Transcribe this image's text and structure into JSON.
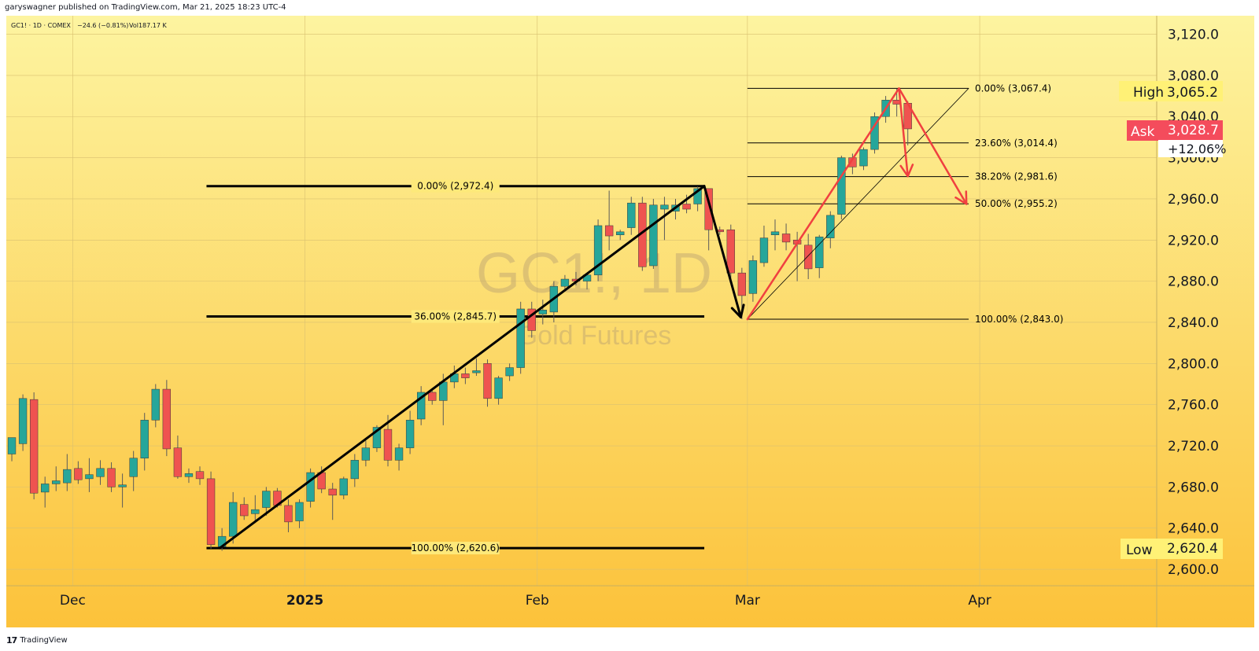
{
  "header": {
    "publish_line": "garyswagner published on TradingView.com, Mar 21, 2025 18:23 UTC-4"
  },
  "legend": {
    "symbol_line": "GC1! · 1D · COMEX",
    "change_text": "−24.6 (−0.81%)",
    "volume_text": "Vol187.17 K"
  },
  "watermark": {
    "symbol": "GC1!, 1D",
    "description": "Gold Futures"
  },
  "footer": {
    "brand": "TradingView",
    "logo_glyph": "17"
  },
  "badges": {
    "high_label": "High",
    "high_value": "3,065.2",
    "ask_label": "Ask",
    "ask_value": "3,028.7",
    "change_pct": "+12.06%",
    "low_label": "Low",
    "low_value": "2,620.4"
  },
  "colors": {
    "background_top": "#fdf4a0",
    "background_bottom": "#fcc23a",
    "up_candle": "#26a69a",
    "down_candle": "#ef5350",
    "wick": "#5a5a5a",
    "fib_black": "#000000",
    "fib_red": "#f04040",
    "high_badge": "#fff176",
    "ask_badge": "#f44c5c",
    "low_badge": "#fff176"
  },
  "chart_data": {
    "type": "candlestick",
    "y_axis": {
      "min": 2584,
      "max": 3138,
      "ticks": [
        "2,600.0",
        "2,640.0",
        "2,680.0",
        "2,720.0",
        "2,760.0",
        "2,800.0",
        "2,840.0",
        "2,880.0",
        "2,920.0",
        "2,960.0",
        "3,000.0",
        "3,040.0",
        "3,080.0",
        "3,120.0"
      ],
      "tick_values": [
        2600,
        2640,
        2680,
        2720,
        2760,
        2800,
        2840,
        2880,
        2920,
        2960,
        3000,
        3040,
        3080,
        3120
      ]
    },
    "x_axis": {
      "labels": [
        {
          "text": "Dec",
          "bar": 5.5,
          "bold": false
        },
        {
          "text": "2025",
          "bar": 26.5,
          "bold": true
        },
        {
          "text": "Feb",
          "bar": 47.5,
          "bold": false
        },
        {
          "text": "Mar",
          "bar": 66.5,
          "bold": false
        },
        {
          "text": "Apr",
          "bar": 87.5,
          "bold": false
        }
      ],
      "visible_bar_range": [
        -0.5,
        103.5
      ]
    },
    "grid": true,
    "candles": [
      {
        "o": 2712,
        "h": 2726,
        "l": 2705,
        "c": 2728
      },
      {
        "o": 2722,
        "h": 2770,
        "l": 2715,
        "c": 2766
      },
      {
        "o": 2765,
        "h": 2772,
        "l": 2668,
        "c": 2674
      },
      {
        "o": 2675,
        "h": 2690,
        "l": 2660,
        "c": 2683
      },
      {
        "o": 2683,
        "h": 2700,
        "l": 2676,
        "c": 2686
      },
      {
        "o": 2684,
        "h": 2712,
        "l": 2676,
        "c": 2697
      },
      {
        "o": 2698,
        "h": 2705,
        "l": 2683,
        "c": 2687
      },
      {
        "o": 2688,
        "h": 2708,
        "l": 2675,
        "c": 2692
      },
      {
        "o": 2690,
        "h": 2706,
        "l": 2682,
        "c": 2698
      },
      {
        "o": 2698,
        "h": 2704,
        "l": 2675,
        "c": 2680
      },
      {
        "o": 2680,
        "h": 2693,
        "l": 2660,
        "c": 2682
      },
      {
        "o": 2690,
        "h": 2715,
        "l": 2676,
        "c": 2708
      },
      {
        "o": 2708,
        "h": 2752,
        "l": 2696,
        "c": 2745
      },
      {
        "o": 2745,
        "h": 2780,
        "l": 2738,
        "c": 2775
      },
      {
        "o": 2775,
        "h": 2784,
        "l": 2710,
        "c": 2717
      },
      {
        "o": 2718,
        "h": 2730,
        "l": 2688,
        "c": 2690
      },
      {
        "o": 2690,
        "h": 2698,
        "l": 2684,
        "c": 2693
      },
      {
        "o": 2695,
        "h": 2700,
        "l": 2682,
        "c": 2688
      },
      {
        "o": 2688,
        "h": 2695,
        "l": 2620,
        "c": 2624
      },
      {
        "o": 2622,
        "h": 2640,
        "l": 2618,
        "c": 2632
      },
      {
        "o": 2632,
        "h": 2675,
        "l": 2625,
        "c": 2665
      },
      {
        "o": 2663,
        "h": 2670,
        "l": 2648,
        "c": 2652
      },
      {
        "o": 2654,
        "h": 2672,
        "l": 2645,
        "c": 2658
      },
      {
        "o": 2660,
        "h": 2680,
        "l": 2652,
        "c": 2676
      },
      {
        "o": 2676,
        "h": 2679,
        "l": 2660,
        "c": 2662
      },
      {
        "o": 2662,
        "h": 2668,
        "l": 2636,
        "c": 2646
      },
      {
        "o": 2647,
        "h": 2668,
        "l": 2640,
        "c": 2665
      },
      {
        "o": 2666,
        "h": 2698,
        "l": 2660,
        "c": 2694
      },
      {
        "o": 2694,
        "h": 2700,
        "l": 2674,
        "c": 2678
      },
      {
        "o": 2678,
        "h": 2684,
        "l": 2648,
        "c": 2672
      },
      {
        "o": 2672,
        "h": 2690,
        "l": 2668,
        "c": 2688
      },
      {
        "o": 2688,
        "h": 2712,
        "l": 2680,
        "c": 2706
      },
      {
        "o": 2706,
        "h": 2725,
        "l": 2700,
        "c": 2718
      },
      {
        "o": 2718,
        "h": 2740,
        "l": 2714,
        "c": 2738
      },
      {
        "o": 2736,
        "h": 2750,
        "l": 2700,
        "c": 2706
      },
      {
        "o": 2706,
        "h": 2722,
        "l": 2696,
        "c": 2718
      },
      {
        "o": 2718,
        "h": 2754,
        "l": 2712,
        "c": 2745
      },
      {
        "o": 2746,
        "h": 2778,
        "l": 2740,
        "c": 2772
      },
      {
        "o": 2772,
        "h": 2776,
        "l": 2760,
        "c": 2764
      },
      {
        "o": 2764,
        "h": 2790,
        "l": 2740,
        "c": 2782
      },
      {
        "o": 2782,
        "h": 2798,
        "l": 2776,
        "c": 2790
      },
      {
        "o": 2790,
        "h": 2796,
        "l": 2780,
        "c": 2786
      },
      {
        "o": 2791,
        "h": 2805,
        "l": 2788,
        "c": 2793
      },
      {
        "o": 2800,
        "h": 2804,
        "l": 2758,
        "c": 2766
      },
      {
        "o": 2766,
        "h": 2788,
        "l": 2760,
        "c": 2786
      },
      {
        "o": 2788,
        "h": 2800,
        "l": 2783,
        "c": 2796
      },
      {
        "o": 2796,
        "h": 2860,
        "l": 2790,
        "c": 2853
      },
      {
        "o": 2853,
        "h": 2860,
        "l": 2825,
        "c": 2832
      },
      {
        "o": 2848,
        "h": 2862,
        "l": 2838,
        "c": 2852
      },
      {
        "o": 2850,
        "h": 2880,
        "l": 2840,
        "c": 2875
      },
      {
        "o": 2875,
        "h": 2886,
        "l": 2870,
        "c": 2882
      },
      {
        "o": 2882,
        "h": 2889,
        "l": 2876,
        "c": 2880
      },
      {
        "o": 2880,
        "h": 2887,
        "l": 2872,
        "c": 2886
      },
      {
        "o": 2886,
        "h": 2940,
        "l": 2880,
        "c": 2934
      },
      {
        "o": 2934,
        "h": 2968,
        "l": 2910,
        "c": 2924
      },
      {
        "o": 2925,
        "h": 2930,
        "l": 2920,
        "c": 2928
      },
      {
        "o": 2932,
        "h": 2962,
        "l": 2925,
        "c": 2956
      },
      {
        "o": 2956,
        "h": 2962,
        "l": 2890,
        "c": 2894
      },
      {
        "o": 2895,
        "h": 2960,
        "l": 2892,
        "c": 2954
      },
      {
        "o": 2950,
        "h": 2962,
        "l": 2920,
        "c": 2954
      },
      {
        "o": 2948,
        "h": 2960,
        "l": 2940,
        "c": 2954
      },
      {
        "o": 2955,
        "h": 2964,
        "l": 2946,
        "c": 2950
      },
      {
        "o": 2955,
        "h": 2972,
        "l": 2948,
        "c": 2970
      },
      {
        "o": 2970,
        "h": 2970,
        "l": 2910,
        "c": 2930
      },
      {
        "o": 2930,
        "h": 2933,
        "l": 2925,
        "c": 2928
      },
      {
        "o": 2930,
        "h": 2935,
        "l": 2878,
        "c": 2888
      },
      {
        "o": 2888,
        "h": 2893,
        "l": 2843,
        "c": 2866
      },
      {
        "o": 2868,
        "h": 2905,
        "l": 2860,
        "c": 2900
      },
      {
        "o": 2898,
        "h": 2934,
        "l": 2894,
        "c": 2922
      },
      {
        "o": 2925,
        "h": 2940,
        "l": 2910,
        "c": 2928
      },
      {
        "o": 2926,
        "h": 2936,
        "l": 2910,
        "c": 2918
      },
      {
        "o": 2920,
        "h": 2928,
        "l": 2880,
        "c": 2916
      },
      {
        "o": 2915,
        "h": 2926,
        "l": 2882,
        "c": 2892
      },
      {
        "o": 2893,
        "h": 2925,
        "l": 2883,
        "c": 2923
      },
      {
        "o": 2922,
        "h": 2948,
        "l": 2912,
        "c": 2944
      },
      {
        "o": 2945,
        "h": 3002,
        "l": 2940,
        "c": 3000
      },
      {
        "o": 3000,
        "h": 3004,
        "l": 2984,
        "c": 2991
      },
      {
        "o": 2992,
        "h": 3010,
        "l": 2988,
        "c": 3008
      },
      {
        "o": 3008,
        "h": 3044,
        "l": 3004,
        "c": 3040
      },
      {
        "o": 3040,
        "h": 3060,
        "l": 3034,
        "c": 3056
      },
      {
        "o": 3056,
        "h": 3067,
        "l": 3040,
        "c": 3052
      },
      {
        "o": 3053,
        "h": 3055,
        "l": 3012,
        "c": 3028
      }
    ],
    "fibonacci": [
      {
        "color": "black",
        "levels": [
          {
            "label": "0.00% (2,972.4)",
            "value": 2972.4
          },
          {
            "label": "36.00% (2,845.7)",
            "value": 2845.7
          },
          {
            "label": "100.00% (2,620.6)",
            "value": 2620.6
          }
        ]
      },
      {
        "color": "thin-black",
        "levels": [
          {
            "label": "0.00% (3,067.4)",
            "value": 3067.4
          },
          {
            "label": "23.60% (3,014.4)",
            "value": 3014.4
          },
          {
            "label": "38.20% (2,981.6)",
            "value": 2981.6
          },
          {
            "label": "50.00% (2,955.2)",
            "value": 2955.2
          },
          {
            "label": "100.00% (2,843.0)",
            "value": 2843.0
          }
        ]
      }
    ]
  }
}
